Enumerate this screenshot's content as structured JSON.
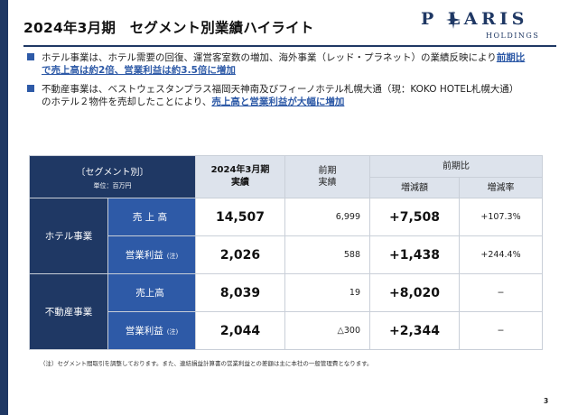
{
  "page": {
    "title": "2024年3月期　セグメント別業績ハイライト",
    "page_number": "3"
  },
  "logo": {
    "word": "P LARIS",
    "sub": "HOLDINGS"
  },
  "bullets": [
    {
      "line1_plain": "ホテル事業は、ホテル需要の回復、運営客室数の増加、海外事業（レッド・プラネット）の業績反映により",
      "line1_highlight": "前期比",
      "line2_highlight": "で売上高は約2倍、営業利益は約3.5倍に増加",
      "line2_plain": ""
    },
    {
      "line1_plain": "不動産事業は、ベストウェスタンプラス福岡天神南及びフィーノホテル札幌大通（現：KOKO HOTEL札幌大通）",
      "line1_highlight": "",
      "line2_plain": "のホテル２物件を売却したことにより、",
      "line2_highlight": "売上高と営業利益が大幅に増加"
    }
  ],
  "table": {
    "header": {
      "segment": "〔セグメント別〕",
      "unit": "単位：百万円",
      "current": "2024年3月期",
      "current_sub": "実績",
      "prev": "前期",
      "prev_sub": "実績",
      "yoy": "前期比",
      "diff": "増減額",
      "rate": "増減率"
    },
    "segments": [
      {
        "name": "ホテル事業",
        "rows": [
          {
            "item": "売 上 高",
            "note": "",
            "current": "14,507",
            "prev": "6,999",
            "diff": "+7,508",
            "rate": "+107.3%"
          },
          {
            "item": "営業利益",
            "note": "(注)",
            "current": "2,026",
            "prev": "588",
            "diff": "+1,438",
            "rate": "+244.4%"
          }
        ]
      },
      {
        "name": "不動産事業",
        "rows": [
          {
            "item": "売上高",
            "note": "",
            "current": "8,039",
            "prev": "19",
            "diff": "+8,020",
            "rate": "−"
          },
          {
            "item": "営業利益",
            "note": "(注)",
            "current": "2,044",
            "prev": "△300",
            "diff": "+2,344",
            "rate": "−"
          }
        ]
      }
    ]
  },
  "footnote": "（注）セグメント間取引を調整しております。また、連結損益計算書の営業利益との差額は主に本社の一般管理費となります。",
  "colors": {
    "navy": "#1f3864",
    "blue": "#2e5aa7",
    "header_light": "#dde3ec"
  }
}
